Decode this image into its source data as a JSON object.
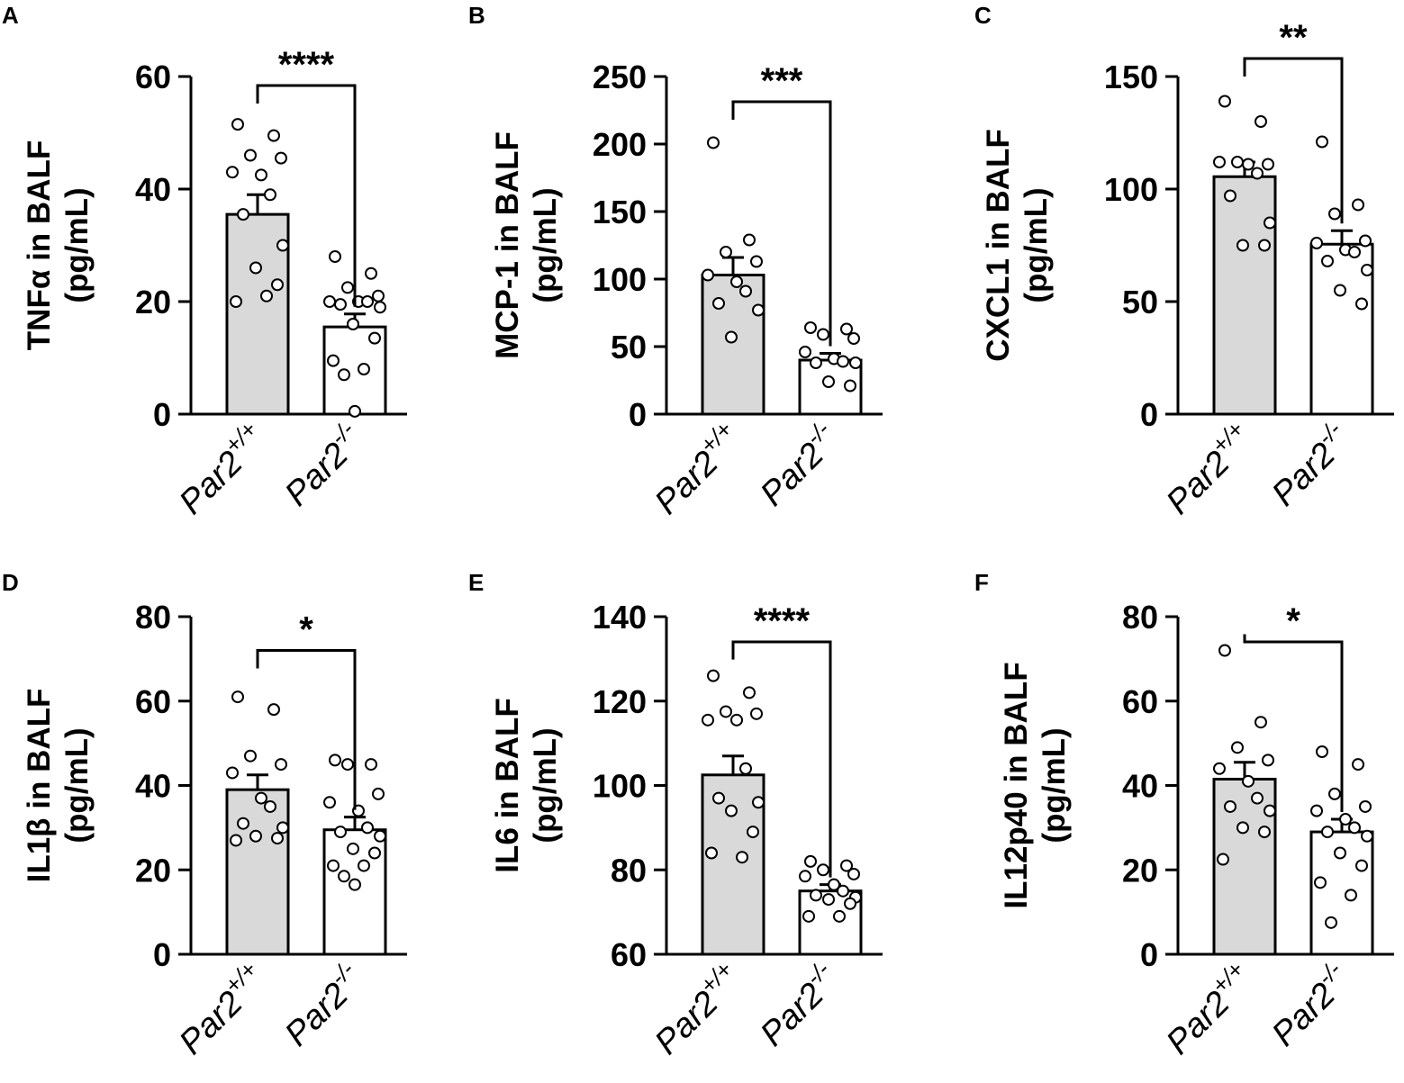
{
  "figure": {
    "group_labels": [
      {
        "base": "Par2",
        "sup": "+/+"
      },
      {
        "base": "Par2",
        "sup": "-/-"
      }
    ]
  },
  "colors": {
    "bar_wt": "#d9d9d9",
    "bar_ko": "#ffffff",
    "stroke": "#000000"
  },
  "chart_data": [
    {
      "panel": "A",
      "type": "bar",
      "ylabel_line1": "TNFα in BALF",
      "ylabel_line2": "(pg/mL)",
      "ylim": [
        0,
        60
      ],
      "ticks": [
        0,
        20,
        40,
        60
      ],
      "significance": "****",
      "series": [
        {
          "name": "Par2+/+",
          "mean": 35.5,
          "sem": 3.5,
          "points": [
            51.5,
            49.5,
            46,
            45.5,
            43,
            42.5,
            39,
            35.5,
            30,
            26,
            23,
            20,
            21
          ]
        },
        {
          "name": "Par2-/-",
          "mean": 15.5,
          "sem": 2.3,
          "points": [
            28,
            25,
            22.5,
            21,
            20,
            20,
            20,
            19.5,
            19,
            16,
            13.5,
            9.5,
            8,
            7,
            0.5
          ]
        }
      ]
    },
    {
      "panel": "B",
      "type": "bar",
      "ylabel_line1": "MCP-1 in BALF",
      "ylabel_line2": "(pg/mL)",
      "ylim": [
        0,
        250
      ],
      "ticks": [
        0,
        50,
        100,
        150,
        200,
        250
      ],
      "significance": "***",
      "series": [
        {
          "name": "Par2+/+",
          "mean": 103,
          "sem": 13,
          "points": [
            201,
            129,
            120,
            113,
            103,
            98,
            91,
            82,
            77,
            57
          ]
        },
        {
          "name": "Par2-/-",
          "mean": 40,
          "sem": 5,
          "points": [
            64,
            63,
            59,
            56,
            46,
            41,
            39,
            38,
            38,
            24,
            21
          ]
        }
      ]
    },
    {
      "panel": "C",
      "type": "bar",
      "ylabel_line1": "CXCL1 in BALF",
      "ylabel_line2": "(pg/mL)",
      "ylim": [
        0,
        150
      ],
      "ticks": [
        0,
        50,
        100,
        150
      ],
      "significance": "**",
      "series": [
        {
          "name": "Par2+/+",
          "mean": 105.5,
          "sem": 6.5,
          "points": [
            139,
            130,
            112,
            111,
            112,
            111,
            107,
            97,
            85,
            75,
            75
          ]
        },
        {
          "name": "Par2-/-",
          "mean": 75.5,
          "sem": 6,
          "points": [
            121,
            93,
            89,
            77,
            76,
            73,
            72,
            68,
            64,
            55,
            49
          ]
        }
      ]
    },
    {
      "panel": "D",
      "type": "bar",
      "ylabel_line1": "IL1β in BALF",
      "ylabel_line2": "(pg/mL)",
      "ylim": [
        0,
        80
      ],
      "ticks": [
        0,
        20,
        40,
        60,
        80
      ],
      "significance": "*",
      "series": [
        {
          "name": "Par2+/+",
          "mean": 39,
          "sem": 3.5,
          "points": [
            61,
            58,
            47,
            45,
            43,
            37,
            35,
            31,
            30,
            28,
            27.5,
            27
          ]
        },
        {
          "name": "Par2-/-",
          "mean": 29.5,
          "sem": 3,
          "points": [
            46,
            45,
            45,
            38,
            36,
            34,
            30,
            29,
            28,
            25,
            24,
            21,
            21,
            18.5,
            16.5
          ]
        }
      ]
    },
    {
      "panel": "E",
      "type": "bar",
      "ylabel_line1": "IL6 in BALF",
      "ylabel_line2": "(pg/mL)",
      "ylim": [
        60,
        140
      ],
      "ticks": [
        60,
        80,
        100,
        120,
        140
      ],
      "significance": "****",
      "series": [
        {
          "name": "Par2+/+",
          "mean": 102.5,
          "sem": 4.5,
          "points": [
            126,
            122,
            117.5,
            117,
            115.5,
            115.5,
            104,
            97,
            96,
            94,
            89,
            84,
            83
          ]
        },
        {
          "name": "Par2-/-",
          "mean": 75,
          "sem": 1.5,
          "points": [
            82,
            81,
            80,
            79,
            78.5,
            76.5,
            75,
            74,
            73.5,
            73,
            72,
            69,
            69
          ]
        }
      ]
    },
    {
      "panel": "F",
      "type": "bar",
      "ylabel_line1": "IL12p40 in BALF",
      "ylabel_line2": "(pg/mL)",
      "ylim": [
        0,
        80
      ],
      "ticks": [
        0,
        20,
        40,
        60,
        80
      ],
      "significance": "*",
      "series": [
        {
          "name": "Par2+/+",
          "mean": 41.5,
          "sem": 4,
          "points": [
            72,
            55,
            49,
            46,
            44,
            41,
            37,
            35,
            34,
            30,
            29,
            22.5
          ]
        },
        {
          "name": "Par2-/-",
          "mean": 29,
          "sem": 3,
          "points": [
            48,
            45,
            38,
            35,
            34,
            32,
            30,
            29,
            28,
            24,
            21,
            17,
            14,
            7.5
          ]
        }
      ]
    }
  ]
}
